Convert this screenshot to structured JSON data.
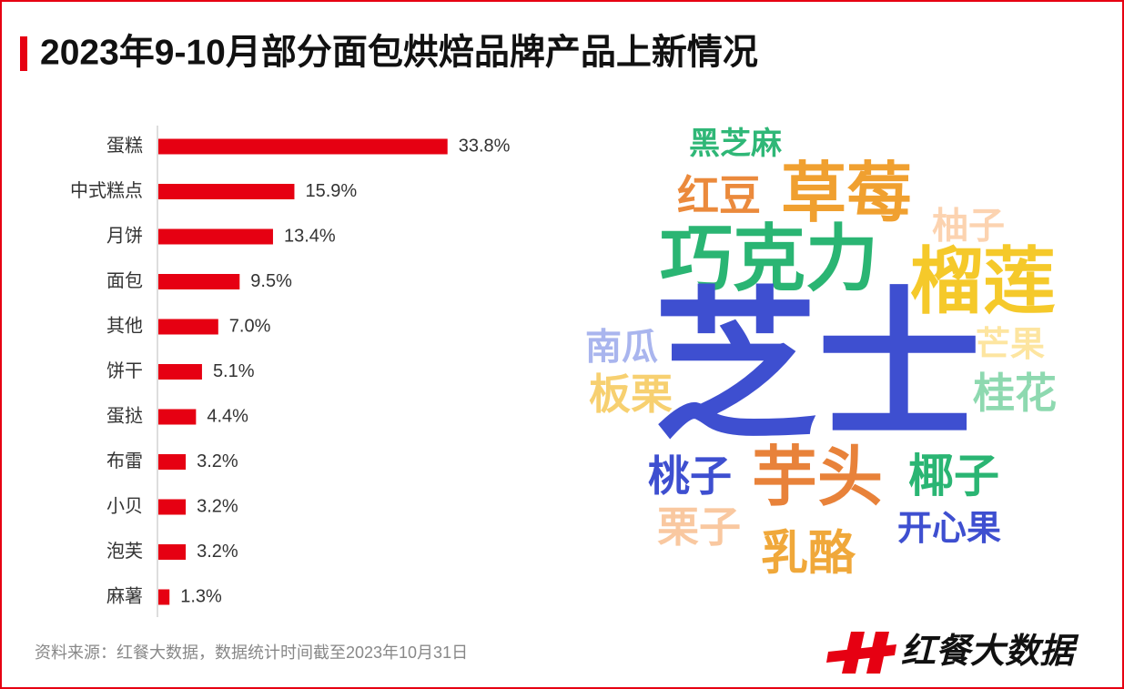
{
  "title": "2023年9-10月部分面包烘焙品牌产品上新情况",
  "source": "资料来源：红餐大数据，数据统计时间截至2023年10月31日",
  "logo": "红餐大数据",
  "chart_data": {
    "type": "bar",
    "orientation": "horizontal",
    "color": "#e60012",
    "categories": [
      "蛋糕",
      "中式糕点",
      "月饼",
      "面包",
      "其他",
      "饼干",
      "蛋挞",
      "布雷",
      "小贝",
      "泡芙",
      "麻薯"
    ],
    "values": [
      33.8,
      15.9,
      13.4,
      9.5,
      7.0,
      5.1,
      4.4,
      3.2,
      3.2,
      3.2,
      1.3
    ],
    "value_labels": [
      "33.8%",
      "15.9%",
      "13.4%",
      "9.5%",
      "7.0%",
      "5.1%",
      "4.4%",
      "3.2%",
      "3.2%",
      "3.2%",
      "1.3%"
    ]
  },
  "word_cloud": {
    "words": [
      {
        "text": "黑芝麻",
        "color": "#2fb777"
      },
      {
        "text": "红豆",
        "color": "#eb8a3c"
      },
      {
        "text": "草莓",
        "color": "#f0a030"
      },
      {
        "text": "柚子",
        "color": "#fcd3b0"
      },
      {
        "text": "巧克力",
        "color": "#2ab573"
      },
      {
        "text": "榴莲",
        "color": "#f5c92a"
      },
      {
        "text": "芝士",
        "color": "#3e4fd0"
      },
      {
        "text": "南瓜",
        "color": "#a9b5ee"
      },
      {
        "text": "芒果",
        "color": "#fde5a0"
      },
      {
        "text": "板栗",
        "color": "#f7d070"
      },
      {
        "text": "桂花",
        "color": "#8ed9b0"
      },
      {
        "text": "桃子",
        "color": "#3e4fd0"
      },
      {
        "text": "芋头",
        "color": "#e8823a"
      },
      {
        "text": "椰子",
        "color": "#2ab573"
      },
      {
        "text": "栗子",
        "color": "#f9c8a0"
      },
      {
        "text": "开心果",
        "color": "#3e4fd0"
      },
      {
        "text": "乳酪",
        "color": "#f0a83a"
      }
    ]
  }
}
